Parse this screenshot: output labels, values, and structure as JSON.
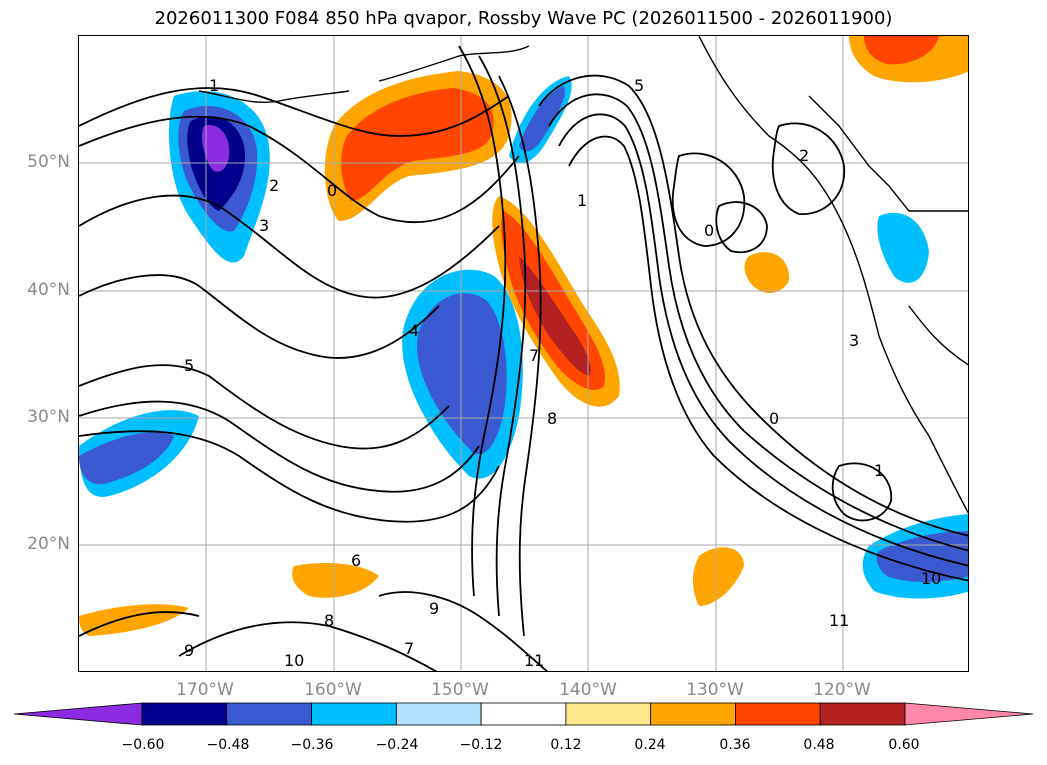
{
  "title": "2026011300 F084 850 hPa qvapor, Rossby Wave PC (2026011500 - 2026011900)",
  "map": {
    "lat_labels": [
      "50°N",
      "40°N",
      "30°N",
      "20°N"
    ],
    "lon_labels": [
      "170°W",
      "160°W",
      "150°W",
      "140°W",
      "130°W",
      "120°W"
    ],
    "contour_labels": [
      "1",
      "2",
      "3",
      "5",
      "0",
      "7",
      "8",
      "4",
      "6",
      "9",
      "10",
      "11",
      "1",
      "2",
      "0",
      "3",
      "5",
      "8",
      "9",
      "7",
      "10",
      "11",
      "0",
      "1"
    ]
  },
  "colorbar": {
    "ticks": [
      "−0.60",
      "−0.48",
      "−0.36",
      "−0.24",
      "−0.12",
      "0.12",
      "0.24",
      "0.36",
      "0.48",
      "0.60"
    ],
    "colors": [
      "#8b2be2",
      "#00008b",
      "#3c5ad0",
      "#00bfff",
      "#b0e2ff",
      "#ffffff",
      "#ffe88a",
      "#ffa500",
      "#ff4500",
      "#b22222",
      "#ff88aa"
    ]
  }
}
